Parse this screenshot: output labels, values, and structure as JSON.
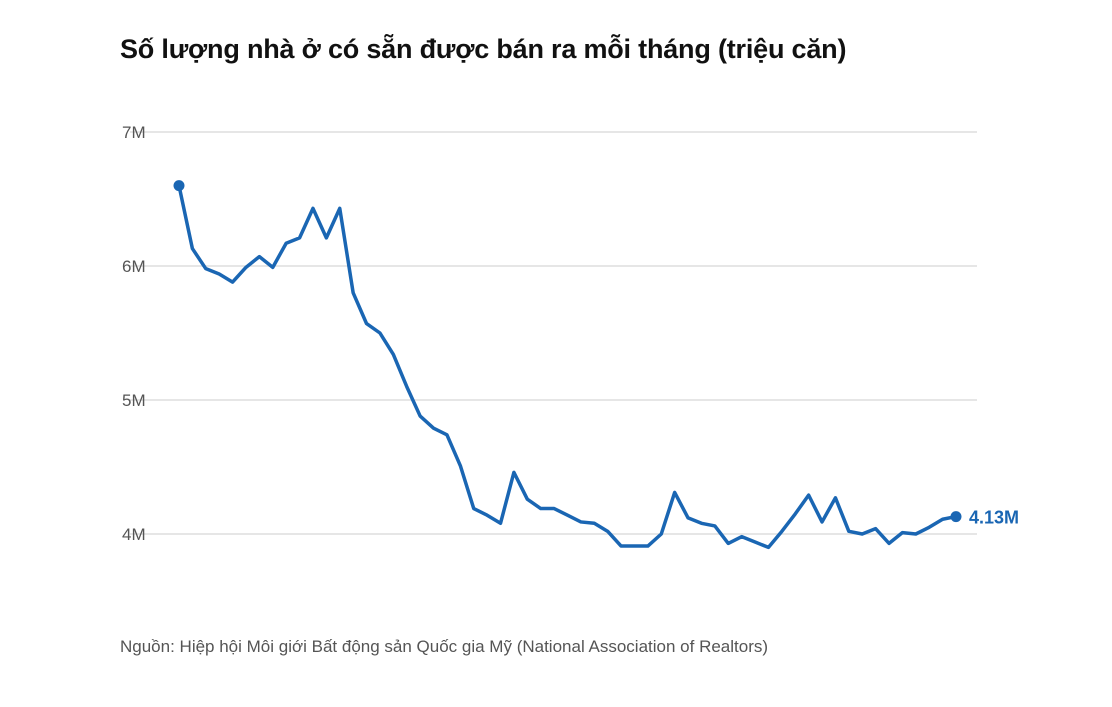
{
  "chart_data": {
    "type": "line",
    "title": "Số lượng nhà ở có sẵn được bán ra mỗi tháng (triệu căn)",
    "xlabel": "",
    "ylabel": "",
    "ylim": [
      3.5,
      7
    ],
    "yticks": [
      {
        "value": 7,
        "label": "7M"
      },
      {
        "value": 6,
        "label": "6M"
      },
      {
        "value": 5,
        "label": "5M"
      },
      {
        "value": 4,
        "label": "4M"
      }
    ],
    "grid": true,
    "color": "#1a66b3",
    "values": [
      6.6,
      6.13,
      5.98,
      5.94,
      5.88,
      5.99,
      6.07,
      5.99,
      6.17,
      6.21,
      6.43,
      6.21,
      6.43,
      5.8,
      5.57,
      5.5,
      5.34,
      5.1,
      4.88,
      4.79,
      4.74,
      4.51,
      4.19,
      4.14,
      4.08,
      4.46,
      4.26,
      4.19,
      4.19,
      4.14,
      4.09,
      4.08,
      4.02,
      3.91,
      3.91,
      3.91,
      4.0,
      4.31,
      4.12,
      4.08,
      4.06,
      3.93,
      3.98,
      3.94,
      3.9,
      4.02,
      4.15,
      4.29,
      4.09,
      4.27,
      4.02,
      4.0,
      4.04,
      3.93,
      4.01,
      4.0,
      4.05,
      4.11,
      4.13
    ],
    "end_label": "4.13M",
    "source": "Nguồn: Hiệp hội Môi giới Bất động sản Quốc gia Mỹ (National Association of Realtors)"
  }
}
